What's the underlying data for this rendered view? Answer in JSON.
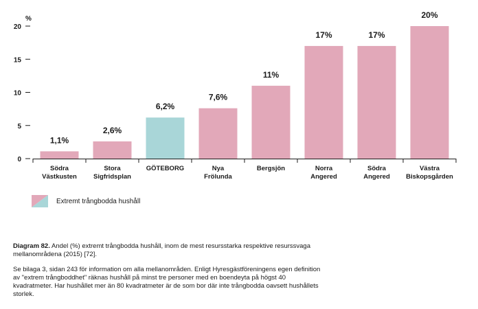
{
  "chart_data": {
    "type": "bar",
    "unit": "%",
    "categories": [
      [
        "Södra",
        "Västkusten"
      ],
      [
        "Stora",
        "Sigfridsplan"
      ],
      [
        "GÖTEBORG"
      ],
      [
        "Nya",
        "Frölunda"
      ],
      [
        "Bergsjön"
      ],
      [
        "Norra",
        "Angered"
      ],
      [
        "Södra",
        "Angered"
      ],
      [
        "Västra",
        "Biskopsgården"
      ]
    ],
    "values": [
      1.1,
      2.6,
      6.2,
      7.6,
      11,
      17,
      17,
      20
    ],
    "value_labels": [
      "1,1%",
      "2,6%",
      "6,2%",
      "7,6%",
      "11%",
      "17%",
      "17%",
      "20%"
    ],
    "highlight_index": 2,
    "ylim": [
      0,
      20
    ],
    "yticks": [
      0,
      5,
      10,
      15,
      20
    ],
    "colors": {
      "bar": "#e2a8b9",
      "highlight": "#a9d6d8"
    }
  },
  "legend": {
    "label": "Extremt trångbodda hushåll",
    "colors": [
      "#e2a8b9",
      "#a9d6d8"
    ]
  },
  "caption": {
    "title": "Diagram 82.",
    "text": " Andel (%) extremt trångbodda hushåll, inom de mest resursstarka respektive resurssvaga mellanområdena (2015) [72].",
    "note": "Se bilaga 3, sidan 243 för information om alla mellanområden. Enligt Hyresgästföreningens egen definition av \"extrem trångboddhet\" räknas hushåll på minst tre personer med en boendeyta på högst 40 kvadratmeter. Har hushållet mer än 80 kvadratmeter är de som bor där inte trångbodda oavsett hushållets storlek."
  }
}
